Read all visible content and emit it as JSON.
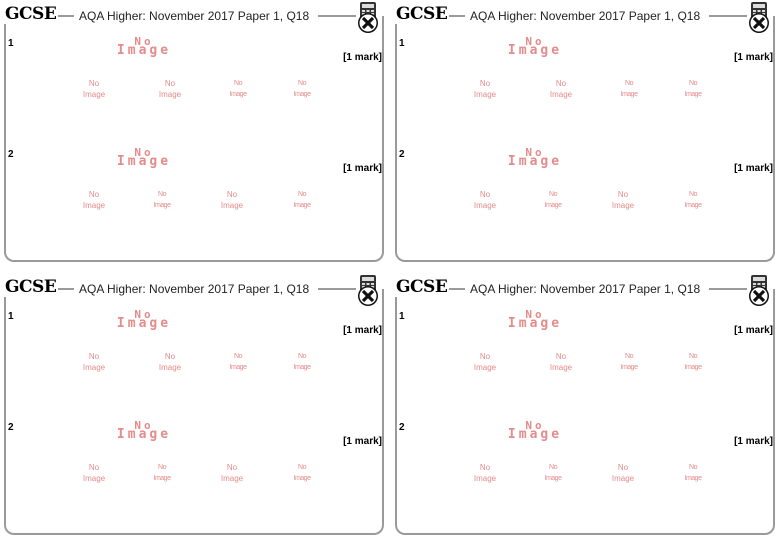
{
  "cards": [
    {
      "logo": "GCSE",
      "title": "AQA Higher: November 2017 Paper 1, Q18"
    },
    {
      "logo": "GCSE",
      "title": "AQA Higher: November 2017 Paper 1, Q18"
    },
    {
      "logo": "GCSE",
      "title": "AQA Higher: November 2017 Paper 1, Q18"
    },
    {
      "logo": "GCSE",
      "title": "AQA Higher: November 2017 Paper 1, Q18"
    }
  ],
  "questions": [
    {
      "number": "1",
      "mark": "[1 mark]"
    },
    {
      "number": "2",
      "mark": "[1 mark]"
    }
  ],
  "placeholder": {
    "line1": "No",
    "line2": "Image"
  },
  "icons": {
    "calculator": "no-calculator-icon"
  },
  "colors": {
    "frame": "#9a9a9a",
    "placeholder": "#e48b8b"
  }
}
